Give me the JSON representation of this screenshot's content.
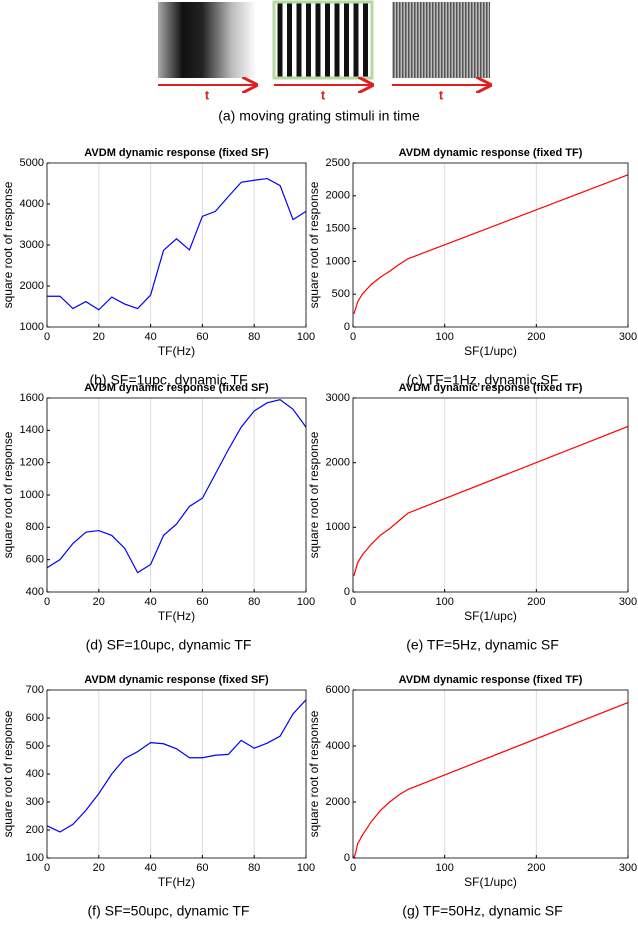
{
  "stimuli": {
    "caption": "(a) moving grating stimuli in time",
    "arrow_labels": [
      "t",
      "t",
      "t"
    ]
  },
  "chart_data": [
    {
      "type": "line",
      "title": "AVDM dynamic response (fixed SF)",
      "xlabel": "TF(Hz)",
      "ylabel": "square root of response",
      "caption": "(b) SF=1upc, dynamic TF",
      "color": "#0000ff",
      "x": [
        0,
        5,
        10,
        15,
        20,
        25,
        30,
        35,
        40,
        45,
        50,
        55,
        60,
        65,
        70,
        75,
        80,
        85,
        90,
        95,
        100
      ],
      "values": [
        1750,
        1750,
        1450,
        1620,
        1420,
        1730,
        1560,
        1450,
        1780,
        2870,
        3150,
        2880,
        3700,
        3820,
        4180,
        4530,
        4580,
        4620,
        4450,
        3620,
        3820
      ],
      "xlim": [
        0,
        100
      ],
      "xticks": [
        0,
        20,
        40,
        60,
        80,
        100
      ],
      "ylim": [
        1000,
        5000
      ],
      "yticks": [
        1000,
        2000,
        3000,
        4000,
        5000
      ],
      "grid": true
    },
    {
      "type": "line",
      "title": "AVDM dynamic response (fixed TF)",
      "xlabel": "SF(1/upc)",
      "ylabel": "square root of response",
      "caption": "(c) TF=1Hz, dynamic SF",
      "color": "#ff0000",
      "x": [
        1,
        5,
        10,
        20,
        30,
        40,
        50,
        60,
        300
      ],
      "values": [
        200,
        380,
        500,
        650,
        760,
        850,
        950,
        1040,
        2320
      ],
      "xlim": [
        0,
        300
      ],
      "xticks": [
        0,
        100,
        200,
        300
      ],
      "ylim": [
        0,
        2500
      ],
      "yticks": [
        0,
        500,
        1000,
        1500,
        2000,
        2500
      ],
      "grid": true
    },
    {
      "type": "line",
      "title": "AVDM dynamic response (fixed SF)",
      "xlabel": "TF(Hz)",
      "ylabel": "square root of response",
      "caption": "(d) SF=10upc, dynamic TF",
      "color": "#0000ff",
      "x": [
        0,
        5,
        10,
        15,
        20,
        25,
        30,
        35,
        40,
        45,
        50,
        55,
        60,
        65,
        70,
        75,
        80,
        85,
        90,
        95,
        100
      ],
      "values": [
        550,
        600,
        700,
        770,
        780,
        750,
        670,
        520,
        570,
        750,
        820,
        930,
        980,
        1130,
        1280,
        1420,
        1520,
        1570,
        1590,
        1530,
        1420
      ],
      "xlim": [
        0,
        100
      ],
      "xticks": [
        0,
        20,
        40,
        60,
        80,
        100
      ],
      "ylim": [
        400,
        1600
      ],
      "yticks": [
        400,
        600,
        800,
        1000,
        1200,
        1400,
        1600
      ],
      "grid": true
    },
    {
      "type": "line",
      "title": "AVDM dynamic response (fixed TF)",
      "xlabel": "SF(1/upc)",
      "ylabel": "square root of response",
      "caption": "(e) TF=5Hz, dynamic SF",
      "color": "#ff0000",
      "x": [
        1,
        5,
        10,
        20,
        30,
        40,
        50,
        60,
        300
      ],
      "values": [
        250,
        450,
        570,
        740,
        880,
        980,
        1100,
        1220,
        2560
      ],
      "xlim": [
        0,
        300
      ],
      "xticks": [
        0,
        100,
        200,
        300
      ],
      "ylim": [
        0,
        3000
      ],
      "yticks": [
        0,
        1000,
        2000,
        3000
      ],
      "grid": true
    },
    {
      "type": "line",
      "title": "AVDM dynamic response (fixed SF)",
      "xlabel": "TF(Hz)",
      "ylabel": "square root of response",
      "caption": "(f) SF=50upc, dynamic TF",
      "color": "#0000ff",
      "x": [
        0,
        5,
        10,
        15,
        20,
        25,
        30,
        35,
        40,
        45,
        50,
        55,
        60,
        65,
        70,
        75,
        80,
        85,
        90,
        95,
        100
      ],
      "values": [
        215,
        193,
        220,
        270,
        330,
        400,
        455,
        480,
        512,
        508,
        490,
        458,
        458,
        467,
        470,
        520,
        492,
        510,
        535,
        615,
        665
      ],
      "xlim": [
        0,
        100
      ],
      "xticks": [
        0,
        20,
        40,
        60,
        80,
        100
      ],
      "ylim": [
        100,
        700
      ],
      "yticks": [
        100,
        200,
        300,
        400,
        500,
        600,
        700
      ],
      "grid": true
    },
    {
      "type": "line",
      "title": "AVDM dynamic response (fixed TF)",
      "xlabel": "SF(1/upc)",
      "ylabel": "square root of response",
      "caption": "(g) TF=50Hz, dynamic SF",
      "color": "#ff0000",
      "x": [
        1,
        3,
        5,
        10,
        20,
        30,
        40,
        50,
        60,
        300
      ],
      "values": [
        0,
        200,
        500,
        800,
        1300,
        1700,
        2000,
        2250,
        2450,
        5550
      ],
      "xlim": [
        0,
        300
      ],
      "xticks": [
        0,
        100,
        200,
        300
      ],
      "ylim": [
        0,
        6000
      ],
      "yticks": [
        0,
        2000,
        4000,
        6000
      ],
      "grid": true
    }
  ]
}
